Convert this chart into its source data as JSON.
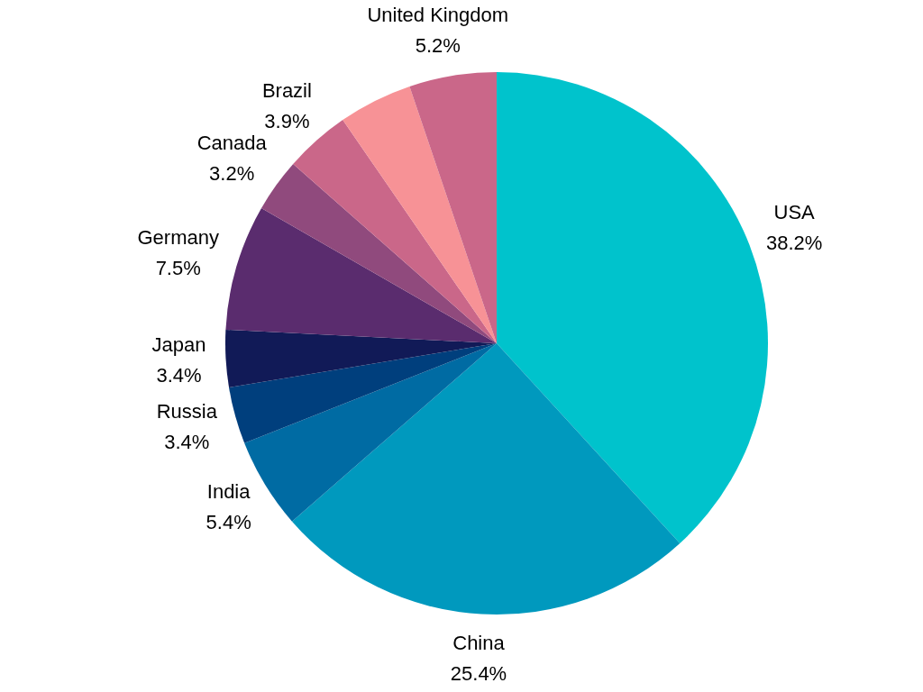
{
  "chart_data": {
    "type": "pie",
    "categories": [
      "USA",
      "China",
      "India",
      "Russia",
      "Japan",
      "Germany",
      "Canada",
      "Brazil",
      null,
      "United Kingdom"
    ],
    "values": [
      38.2,
      25.4,
      5.4,
      3.4,
      3.4,
      7.5,
      3.2,
      3.9,
      4.4,
      5.2
    ],
    "value_labels": [
      "38.2%",
      "25.4%",
      "5.4%",
      "3.4%",
      "3.4%",
      "7.5%",
      "3.2%",
      "3.9%",
      null,
      "5.2%"
    ],
    "colors": [
      "#00c3cc",
      "#0099be",
      "#006ba3",
      "#003f7d",
      "#111a57",
      "#5a2c6e",
      "#904a7d",
      "#ca6789",
      "#f79296",
      "#ca6789"
    ],
    "legend": false
  }
}
